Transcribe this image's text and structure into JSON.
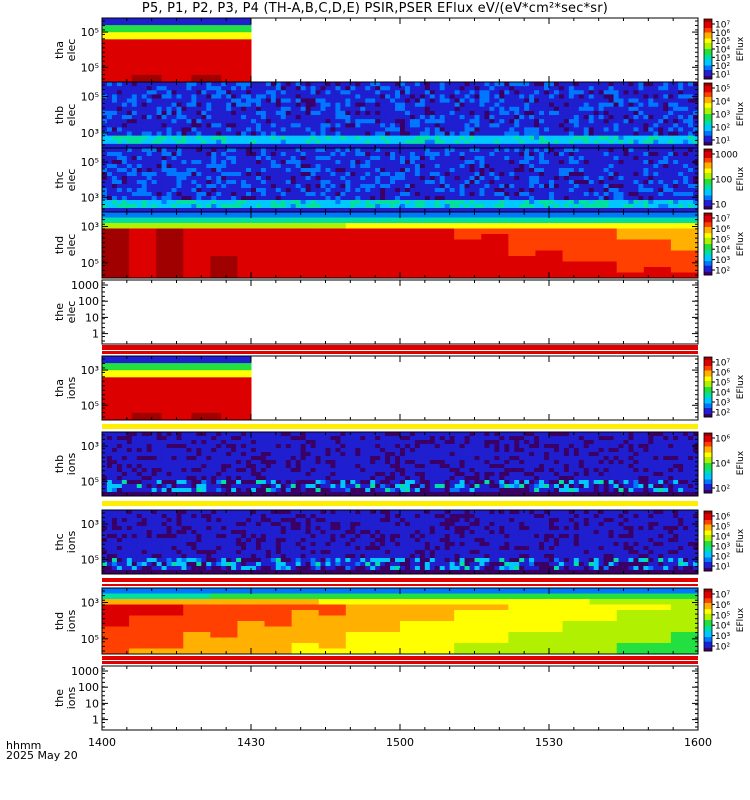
{
  "title": "P5, P1, P2, P3, P4 (TH-A,B,C,D,E) PSIR,PSER EFlux eV/(eV*cm²*sec*sr)",
  "bottom": {
    "time_format": "hhmm",
    "date": "2025 May 20"
  },
  "chart_data": {
    "type": "heatmap",
    "x_ticks": [
      "1400",
      "1430",
      "1500",
      "1530",
      "1600"
    ],
    "x_range": [
      "1400",
      "1600"
    ],
    "colormap": [
      "#3a0066",
      "#1f1fd0",
      "#0077ff",
      "#00c8ff",
      "#00e0a0",
      "#22e040",
      "#b0f000",
      "#ffff00",
      "#ffb000",
      "#ff4000",
      "#dd0000",
      "#a00000"
    ],
    "panels": [
      {
        "id": "tha_elec",
        "label": [
          "tha",
          "elec"
        ],
        "kind": "spectrogram",
        "pattern": "tha",
        "y_ticks": [
          "10⁵",
          "10⁵"
        ],
        "data_end": "1430",
        "colorbar": {
          "unit": "EFlux",
          "ticks": [
            "10⁷",
            "10⁶",
            "10⁵",
            "10⁴",
            "10³",
            "10²",
            "10¹"
          ]
        }
      },
      {
        "id": "thb_elec",
        "label": [
          "thb",
          "elec"
        ],
        "kind": "spectrogram",
        "pattern": "noise",
        "y_ticks": [
          "10⁵",
          "10³"
        ],
        "colorbar": {
          "unit": "EFlux",
          "ticks": [
            "10⁵",
            "10⁴",
            "10³",
            "10²",
            "10¹"
          ]
        }
      },
      {
        "id": "thc_elec",
        "label": [
          "thc",
          "elec"
        ],
        "kind": "spectrogram",
        "pattern": "noise",
        "y_ticks": [
          "10⁵",
          "10³"
        ],
        "colorbar": {
          "unit": "EFlux",
          "ticks": [
            "1000",
            "100",
            "10"
          ]
        }
      },
      {
        "id": "thd_elec",
        "label": [
          "thd",
          "elec"
        ],
        "kind": "spectrogram",
        "pattern": "thd",
        "y_ticks": [
          "10³",
          "10⁵"
        ],
        "colorbar": {
          "unit": "EFlux",
          "ticks": [
            "10⁷",
            "10⁶",
            "10⁵",
            "10⁴",
            "10³",
            "10²"
          ]
        }
      },
      {
        "id": "the_elec",
        "label": [
          "the",
          "elec"
        ],
        "kind": "empty",
        "y_ticks": [
          "1000",
          "100",
          "10",
          "1"
        ]
      },
      {
        "id": "tha_ions",
        "label": [
          "tha",
          "ions"
        ],
        "kind": "spectrogram",
        "pattern": "tha",
        "y_ticks": [
          "10³",
          "10⁵"
        ],
        "data_end": "1430",
        "colorbar": {
          "unit": "EFlux",
          "ticks": [
            "10⁷",
            "10⁶",
            "10⁵",
            "10⁴",
            "10³",
            "10²"
          ]
        }
      },
      {
        "id": "thb_ions",
        "label": [
          "thb",
          "ions"
        ],
        "kind": "spectrogram",
        "pattern": "noise_ions",
        "y_ticks": [
          "10³",
          "10⁵"
        ],
        "colorbar": {
          "unit": "EFlux",
          "ticks": [
            "10⁶",
            "10⁴",
            "10²"
          ]
        }
      },
      {
        "id": "thc_ions",
        "label": [
          "thc",
          "ions"
        ],
        "kind": "spectrogram",
        "pattern": "noise_ions",
        "y_ticks": [
          "10³",
          "10⁵"
        ],
        "colorbar": {
          "unit": "EFlux",
          "ticks": [
            "10⁶",
            "10⁵",
            "10⁴",
            "10³",
            "10²",
            "10¹"
          ]
        }
      },
      {
        "id": "thd_ions",
        "label": [
          "thd",
          "ions"
        ],
        "kind": "spectrogram",
        "pattern": "thd_ions",
        "y_ticks": [
          "10³",
          "10⁵"
        ],
        "colorbar": {
          "unit": "EFlux",
          "ticks": [
            "10⁷",
            "10⁶",
            "10⁵",
            "10⁴",
            "10³",
            "10²"
          ]
        }
      },
      {
        "id": "the_ions",
        "label": [
          "the",
          "ions"
        ],
        "kind": "empty",
        "y_ticks": [
          "1000",
          "100",
          "10",
          "1"
        ]
      }
    ]
  }
}
